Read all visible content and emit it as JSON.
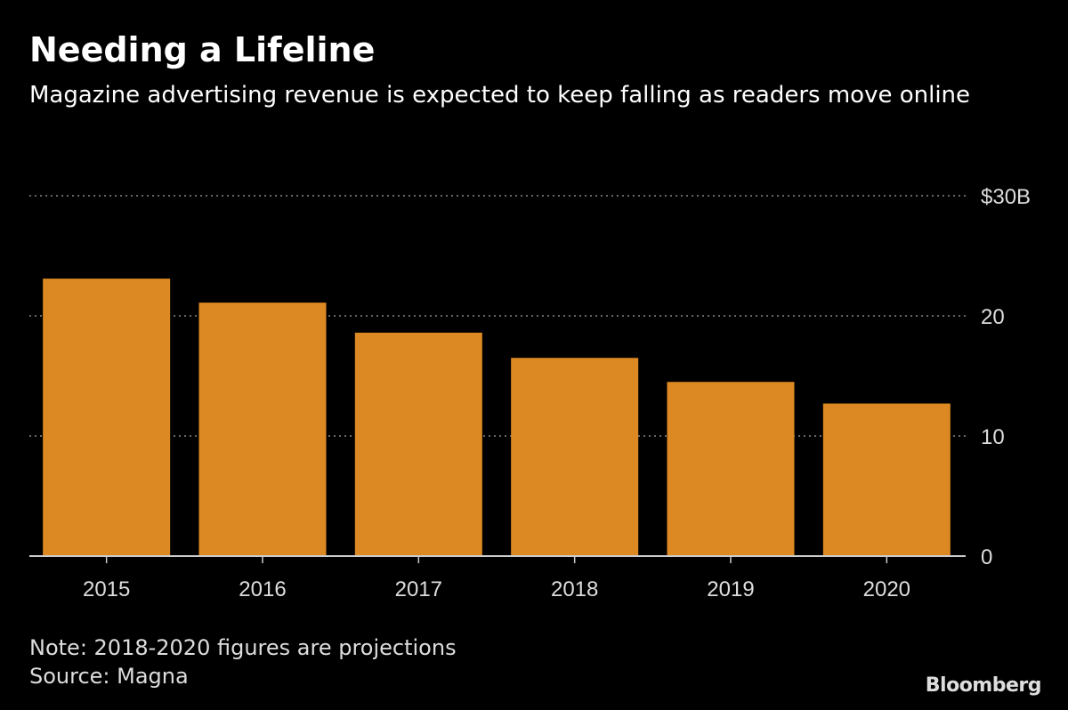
{
  "title": "Needing a Lifeline",
  "subtitle": "Magazine advertising revenue is expected to keep falling as readers move online",
  "note": "Note: 2018-2020 figures are projections",
  "source": "Source: Magna",
  "logo": "Bloomberg",
  "colors": {
    "bar": "#dc8924",
    "background": "#000000",
    "grid": "#666666"
  },
  "chart_data": {
    "type": "bar",
    "categories": [
      "2015",
      "2016",
      "2017",
      "2018",
      "2019",
      "2020"
    ],
    "values": [
      23.1,
      21.1,
      18.6,
      16.5,
      14.5,
      12.7
    ],
    "ylim": [
      0,
      30
    ],
    "yticks": [
      0,
      10,
      20,
      30
    ],
    "ytick_labels": [
      "0",
      "10",
      "20",
      "$30B"
    ],
    "grid": true,
    "y_axis_side": "right",
    "unit": "billions USD"
  }
}
